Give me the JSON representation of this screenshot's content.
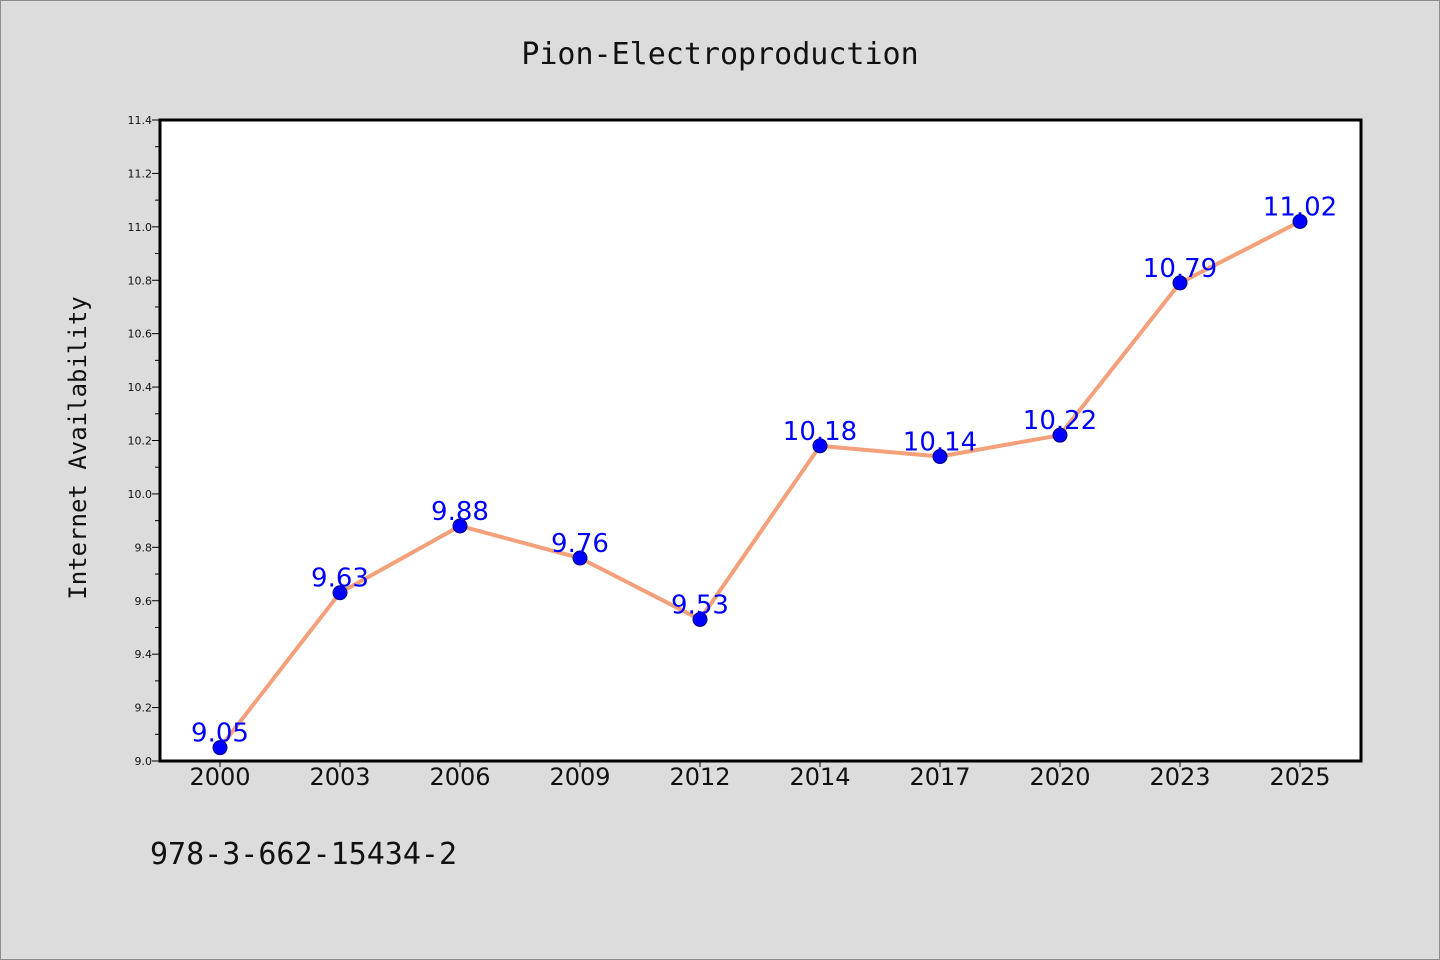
{
  "chart_data": {
    "type": "line",
    "title": "Pion-Electroproduction",
    "xlabel": "",
    "ylabel": "Internet Availability",
    "categories": [
      "2000",
      "2003",
      "2006",
      "2009",
      "2012",
      "2014",
      "2017",
      "2020",
      "2023",
      "2025"
    ],
    "series": [
      {
        "values": [
          9.05,
          9.63,
          9.88,
          9.76,
          9.53,
          10.18,
          10.14,
          10.22,
          10.79,
          11.02
        ],
        "line_color": "#f4a07a",
        "marker_color": "#0000ff"
      }
    ],
    "data_labels": [
      "9.05",
      "9.63",
      "9.88",
      "9.76",
      "9.53",
      "10.18",
      "10.14",
      "10.22",
      "10.79",
      "11.02"
    ],
    "ylim": [
      9.0,
      11.4
    ],
    "yticks": [
      "9.0",
      "9.2",
      "9.4",
      "9.6",
      "9.8",
      "10.0",
      "10.2",
      "10.4",
      "10.6",
      "10.8",
      "11.0",
      "11.2",
      "11.4"
    ],
    "grid": false,
    "legend": "none"
  },
  "footer": {
    "text": "978-3-662-15434-2"
  },
  "colors": {
    "background": "#dcdcdc",
    "plot_background": "#ffffff",
    "line": "#f4a07a",
    "marker": "#0000ff",
    "label": "#0000ff"
  }
}
